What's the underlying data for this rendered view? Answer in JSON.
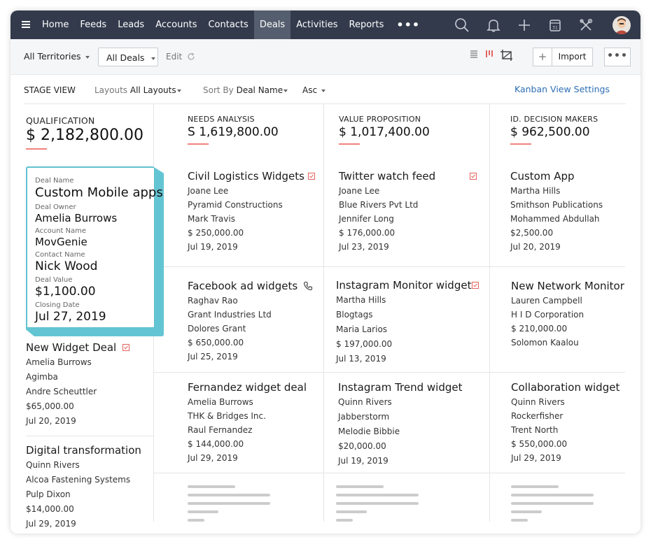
{
  "nav": {
    "items": [
      "Home",
      "Feeds",
      "Leads",
      "Accounts",
      "Contacts",
      "Deals",
      "Activities",
      "Reports"
    ],
    "active": "Deals",
    "more": "•••"
  },
  "toolbar": {
    "territories": "All Territories",
    "deals_view": "All Deals",
    "edit": "Edit",
    "import": "Import",
    "plus": "+",
    "more": "•••"
  },
  "subbar": {
    "stage_view": "STAGE VIEW",
    "layouts_label": "Layouts",
    "layouts_value": "All Layouts",
    "sort_label": "Sort By",
    "sort_value": "Deal Name",
    "order": "Asc",
    "kanban_settings": "Kanban View Settings"
  },
  "colors": {
    "topbar": "#323a4c",
    "active_tab": "#555e6e",
    "accent_line": "#f0827c",
    "drag_card": "#63c5d3",
    "link": "#2d6fb4"
  },
  "stages": [
    {
      "name": "QUALIFICATION",
      "amount": "$ 2,182,800.00"
    },
    {
      "name": "NEEDS ANALYSIS",
      "amount": "S 1,619,800.00"
    },
    {
      "name": "VALUE PROPOSITION",
      "amount": "$ 1,017,400.00"
    },
    {
      "name": "ID. DECISION MAKERS",
      "amount": "$ 962,500.00"
    }
  ],
  "drag_card": {
    "deal_name_label": "Deal Name",
    "deal_name": "Custom Mobile apps",
    "owner_label": "Deal Owner",
    "owner": "Amelia Burrows",
    "account_label": "Account Name",
    "account": "MovGenie",
    "contact_label": "Contact Name",
    "contact": "Nick Wood",
    "value_label": "Deal Value",
    "value": "$1,100.00",
    "date_label": "Closing Date",
    "date": "Jul 27, 2019"
  },
  "col1_cards": [
    {
      "title": "New Widget Deal",
      "owner": "Amelia Burrows",
      "account": "Agimba",
      "contact": "Andre Scheuttler",
      "amount": "$65,000.00",
      "date": "Jul 20, 2019",
      "icon": "task-icon"
    },
    {
      "title": "Digital transformation",
      "owner": "Quinn Rivers",
      "account": "Alcoa Fastening Systems",
      "contact": "Pulp Dixon",
      "amount": "$14,000.00",
      "date": "Jul 29, 2019"
    }
  ],
  "col2_cards": [
    {
      "title": "Civil Logistics Widgets",
      "owner": "Joane Lee",
      "account": "Pyramid Constructions",
      "contact": "Mark Travis",
      "amount": "$ 250,000.00",
      "date": "Jul 19, 2019",
      "icon": "task-icon"
    },
    {
      "title": "Facebook ad widgets",
      "owner": "Raghav Rao",
      "account": "Grant Industries Ltd",
      "contact": "Dolores Grant",
      "amount": "$ 650,000.00",
      "date": "Jul 25, 2019",
      "icon": "phone-icon"
    },
    {
      "title": "Fernandez widget deal",
      "owner": "Amelia Burrows",
      "account": "THK & Bridges Inc.",
      "contact": "Raul Fernandez",
      "amount": "$ 144,000.00",
      "date": "Jul 29, 2019"
    }
  ],
  "col3_cards": [
    {
      "title": "Twitter watch feed",
      "owner": "Joane Lee",
      "account": "Blue Rivers Pvt Ltd",
      "contact": "Jennifer Long",
      "amount": "$ 176,000.00",
      "date": "Jul 23, 2019",
      "icon": "task-icon"
    },
    {
      "title": "Instagram Monitor widget",
      "owner": "Martha Hills",
      "account": "Blogtags",
      "contact": "Maria Larios",
      "amount": "$ 197,000.00",
      "date": "Jul 13, 2019",
      "icon": "task-icon"
    },
    {
      "title": "Instagram Trend widget",
      "owner": "Quinn Rivers",
      "account": "Jabberstorm",
      "contact": "Melodie Bibbie",
      "amount": "$20,000.00",
      "date": "Jul 19, 2019"
    }
  ],
  "col4_cards": [
    {
      "title": "Custom App",
      "owner": "Martha Hills",
      "account": "Smithson Publications",
      "contact": "Mohammed Abdullah",
      "amount": "$2,500.00",
      "date": "Jul 20, 2019"
    },
    {
      "title": "New Network Monitor",
      "owner": "Lauren Campbell",
      "account": "H I D Corporation",
      "contact": "$ 210,000.00",
      "amount": "Solomon Kaalou",
      "date": ""
    },
    {
      "title": "Collaboration widget",
      "owner": "Quinn Rivers",
      "account": "Rockerfisher",
      "contact": "Trent North",
      "amount": "$ 550,000.00",
      "date": "Jul 29, 2019"
    }
  ]
}
